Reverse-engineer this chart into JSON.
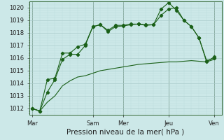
{
  "xlabel": "Pression niveau de la mer( hPa )",
  "ylim": [
    1011.5,
    1020.5
  ],
  "xlim": [
    -0.2,
    12.5
  ],
  "xtick_labels": [
    "Mar",
    "Sam",
    "Mer",
    "Jeu",
    "Ven"
  ],
  "xtick_positions": [
    0,
    4,
    6,
    9,
    12
  ],
  "background_color": "#cce8e8",
  "grid_major_color": "#aacccc",
  "grid_minor_color": "#bbdddd",
  "line_color": "#1a6018",
  "lines": [
    {
      "x": [
        0,
        0.5,
        1.0,
        1.5,
        2.0,
        2.5,
        3.0,
        3.5,
        4.0,
        4.5,
        5.0,
        5.5,
        6.0,
        6.5,
        7.0,
        7.5,
        8.0,
        8.5,
        9.0,
        9.5,
        10.0,
        10.5,
        11.0,
        11.5,
        12.0
      ],
      "y": [
        1012.0,
        1011.8,
        1013.3,
        1014.3,
        1015.9,
        1016.3,
        1016.3,
        1017.0,
        1018.5,
        1018.65,
        1018.1,
        1018.5,
        1018.55,
        1018.65,
        1018.7,
        1018.6,
        1018.65,
        1019.9,
        1020.4,
        1019.8,
        1019.0,
        1018.5,
        1017.6,
        1015.8,
        1016.0
      ],
      "has_markers": true
    },
    {
      "x": [
        0,
        0.5,
        1.0,
        1.5,
        2.0,
        2.5,
        3.0,
        3.5,
        4.0,
        4.5,
        5.0,
        5.5,
        6.0,
        6.5,
        7.0,
        7.5,
        8.0,
        8.5,
        9.0,
        9.5,
        10.0,
        10.5,
        11.0,
        11.5,
        12.0
      ],
      "y": [
        1012.0,
        1011.8,
        1014.3,
        1014.4,
        1016.4,
        1016.4,
        1016.9,
        1017.1,
        1018.5,
        1018.65,
        1018.2,
        1018.6,
        1018.6,
        1018.7,
        1018.7,
        1018.65,
        1018.65,
        1019.4,
        1019.9,
        1020.0,
        1019.0,
        1018.5,
        1017.6,
        1015.7,
        1016.1
      ],
      "has_markers": true
    },
    {
      "x": [
        0,
        0.5,
        1.0,
        1.5,
        2.0,
        2.5,
        3.0,
        3.5,
        4.0,
        4.5,
        5.0,
        5.5,
        6.0,
        6.5,
        7.0,
        7.5,
        8.0,
        8.5,
        9.0,
        9.5,
        10.0,
        10.5,
        11.0,
        11.5,
        12.0
      ],
      "y": [
        1012.0,
        1011.8,
        1012.5,
        1013.0,
        1013.8,
        1014.2,
        1014.5,
        1014.6,
        1014.8,
        1015.0,
        1015.1,
        1015.2,
        1015.3,
        1015.4,
        1015.5,
        1015.55,
        1015.6,
        1015.65,
        1015.7,
        1015.7,
        1015.75,
        1015.8,
        1015.75,
        1015.7,
        1015.9
      ],
      "has_markers": false
    }
  ],
  "xlabel_fontsize": 7.5,
  "tick_fontsize": 6.0
}
